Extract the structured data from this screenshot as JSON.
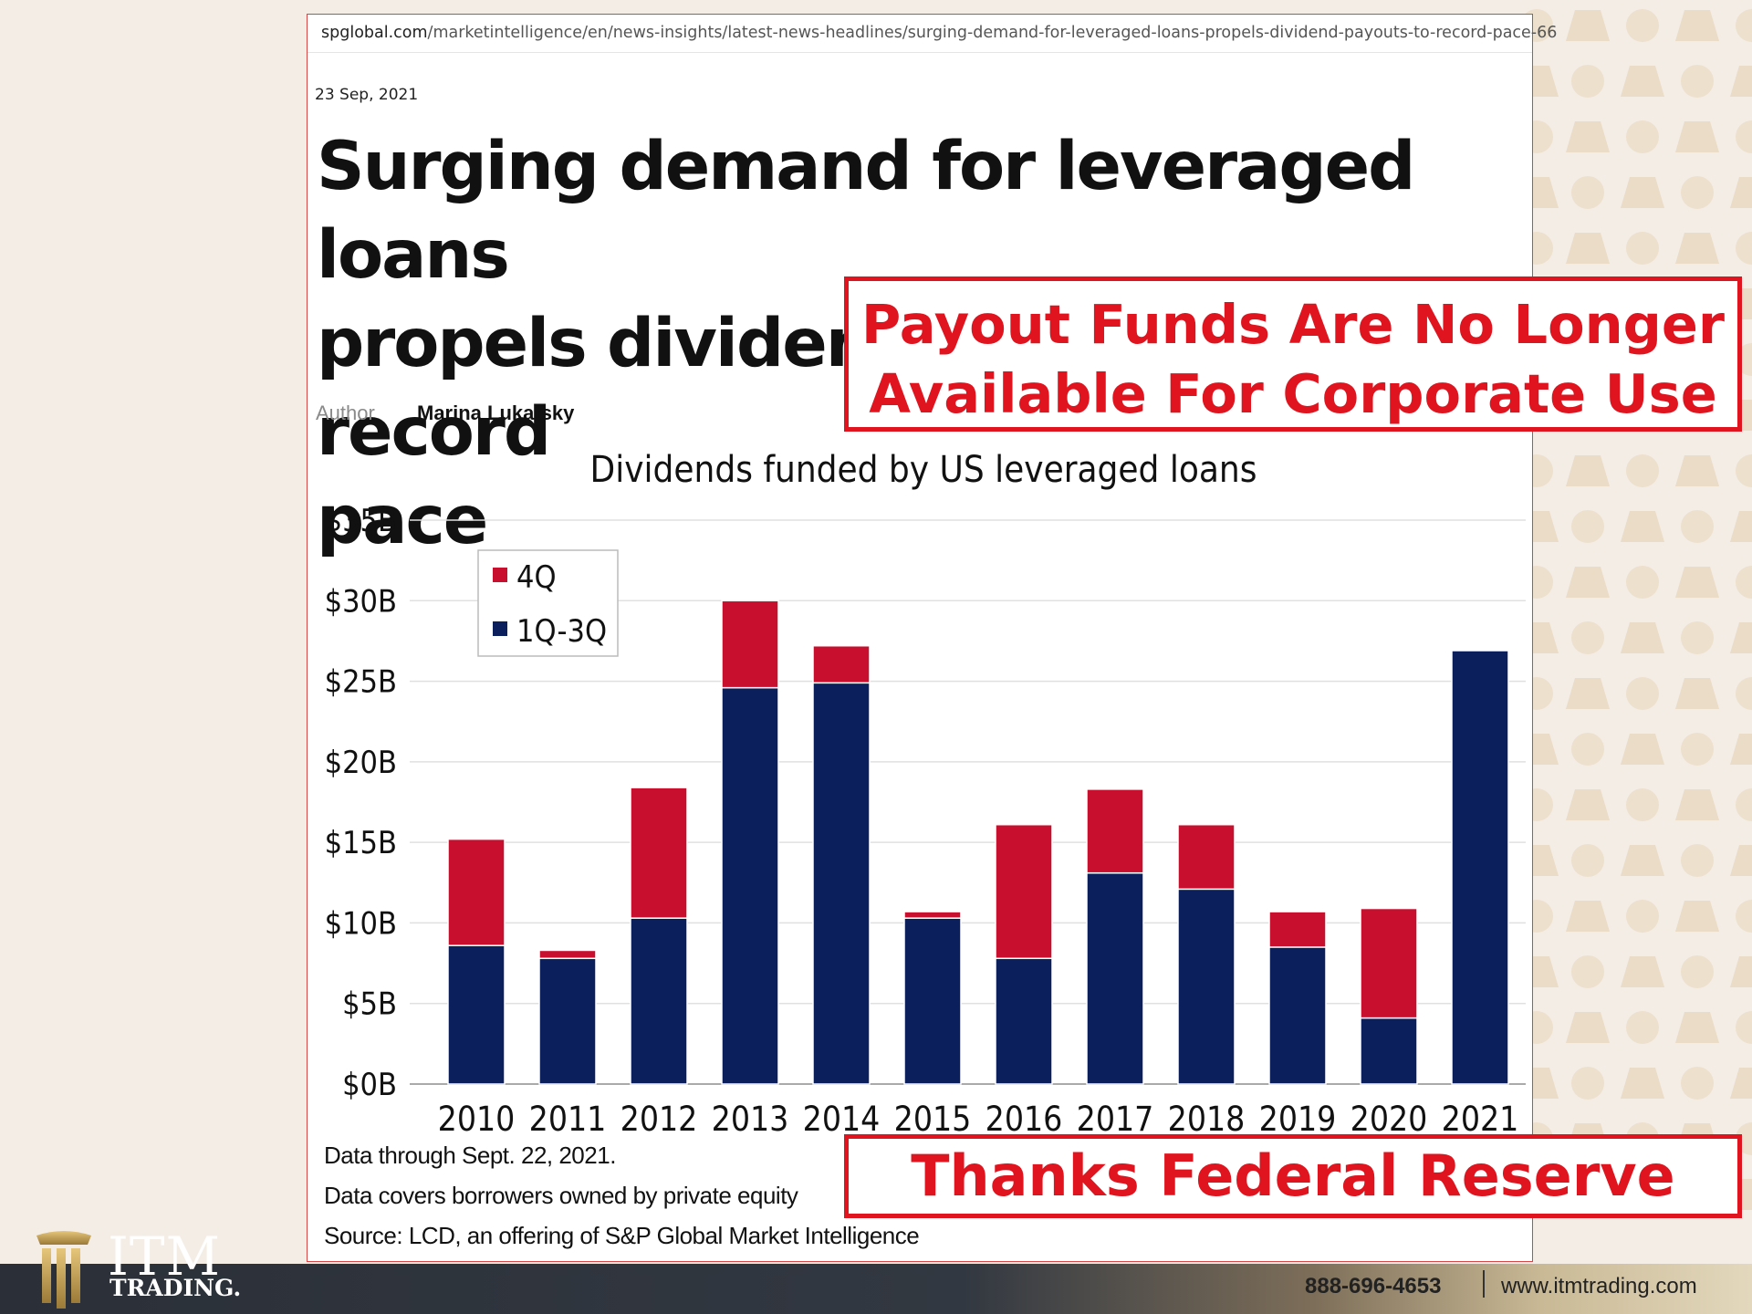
{
  "article": {
    "url_domain": "spglobal.com",
    "url_path": "/marketintelligence/en/news-insights/latest-news-headlines/surging-demand-for-leveraged-loans-propels-dividend-payouts-to-record-pace-66",
    "date": "23 Sep, 2021",
    "headline_line1": "Surging demand for leveraged loans",
    "headline_line2": "propels dividend payouts to record",
    "headline_line3": "pace",
    "author_label": "Author",
    "author_name": "Marina Lukatsky"
  },
  "chart_data": {
    "type": "bar",
    "stacked": true,
    "title": "Dividends funded by US leveraged loans",
    "categories": [
      "2010",
      "2011",
      "2012",
      "2013",
      "2014",
      "2015",
      "2016",
      "2017",
      "2018",
      "2019",
      "2020",
      "2021"
    ],
    "series": [
      {
        "name": "1Q-3Q",
        "color": "#0a1f5c",
        "values": [
          8.6,
          7.8,
          10.3,
          24.6,
          24.9,
          10.3,
          7.8,
          13.1,
          12.1,
          8.5,
          4.1,
          26.9
        ]
      },
      {
        "name": "4Q",
        "color": "#c8102e",
        "values": [
          6.6,
          0.5,
          8.1,
          5.4,
          2.3,
          0.4,
          8.3,
          5.2,
          4.0,
          2.2,
          6.8,
          0
        ]
      }
    ],
    "y_ticks": [
      "$0B",
      "$5B",
      "$10B",
      "$15B",
      "$20B",
      "$25B",
      "$30B",
      "$35B"
    ],
    "ylim": [
      0,
      35
    ],
    "grid": true,
    "legend_position": "top-left",
    "legend": [
      "4Q",
      "1Q-3Q"
    ]
  },
  "notes": {
    "line1": "Data through Sept. 22, 2021.",
    "line2": "Data covers borrowers owned by private equity",
    "line3": "Source: LCD, an offering of S&P Global Market Intelligence"
  },
  "callouts": {
    "top_line1": "Payout Funds Are No Longer",
    "top_line2": "Available For Corporate Use",
    "bottom": "Thanks Federal Reserve"
  },
  "footer": {
    "logo_main": "ITM",
    "logo_sub": "TRADING.",
    "phone": "888-696-4653",
    "website": "www.itmtrading.com"
  }
}
